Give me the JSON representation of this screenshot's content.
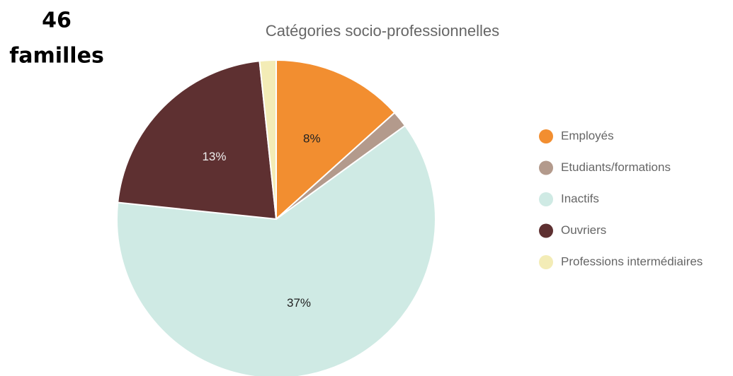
{
  "chart_data": {
    "type": "pie",
    "title": "Catégories socio-professionnelles",
    "annotations": [
      "46",
      "familles"
    ],
    "categories": [
      "Employés",
      "Etudiants/formations",
      "Inactifs",
      "Ouvriers",
      "Professions intermédiaires"
    ],
    "values": [
      8,
      1,
      37,
      13,
      1
    ],
    "value_labels": [
      "8%",
      null,
      "37%",
      "13%",
      null
    ],
    "colors": [
      "#f28e30",
      "#b39a8c",
      "#cfeae4",
      "#5e3031",
      "#f3ecb6"
    ],
    "legend": "right"
  }
}
